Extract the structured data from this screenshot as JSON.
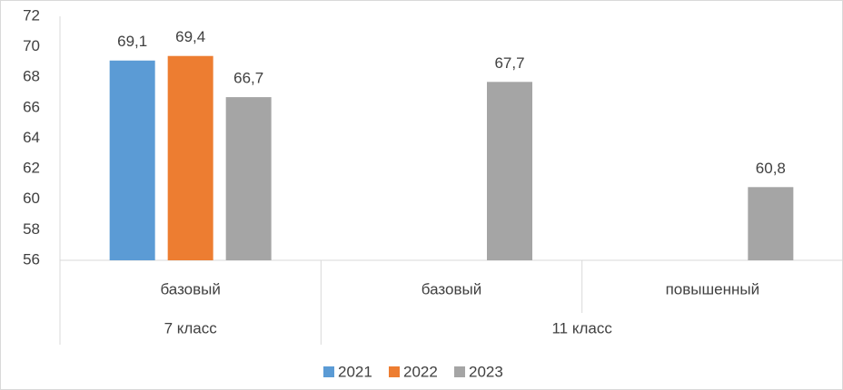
{
  "chart_data": {
    "type": "bar",
    "groups": [
      {
        "name": "7 класс",
        "categories": [
          "базовый"
        ]
      },
      {
        "name": "11 класс",
        "categories": [
          "базовый",
          "повышенный"
        ]
      }
    ],
    "series": [
      {
        "name": "2021",
        "color": "#5b9bd5",
        "values": [
          69.1,
          null,
          null
        ],
        "value_labels": [
          "69,1",
          null,
          null
        ]
      },
      {
        "name": "2022",
        "color": "#ed7d31",
        "values": [
          69.4,
          null,
          null
        ],
        "value_labels": [
          "69,4",
          null,
          null
        ]
      },
      {
        "name": "2023",
        "color": "#a5a5a5",
        "values": [
          66.7,
          67.7,
          60.8
        ],
        "value_labels": [
          "66,7",
          "67,7",
          "60,8"
        ]
      }
    ],
    "ylim": [
      56,
      72
    ],
    "yticks": [
      56,
      58,
      60,
      62,
      64,
      66,
      68,
      70,
      72
    ],
    "grid": false,
    "legend": "bottom"
  }
}
